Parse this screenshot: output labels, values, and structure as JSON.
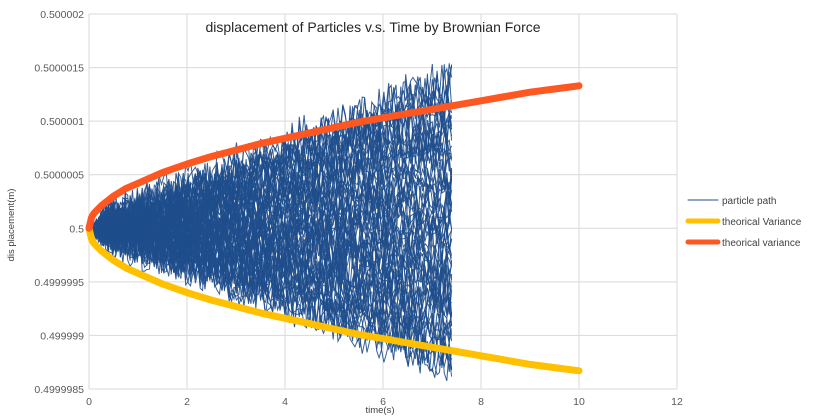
{
  "chart_data": {
    "type": "line",
    "title": "displacement of Particles v.s. Time by Brownian Force",
    "xlabel": "time(s)",
    "ylabel": "dis placement(m)",
    "xlim": [
      0,
      12
    ],
    "ylim": [
      0.4999985,
      0.500002
    ],
    "xticks": [
      "0",
      "2",
      "4",
      "6",
      "8",
      "10",
      "12"
    ],
    "yticks": [
      "0.5000020",
      "0.5000015",
      "0.5000010",
      "0.5000005",
      "0.5",
      "0.4999995",
      "0.4999990",
      "0.4999985"
    ],
    "ytick_labels": [
      "0.500002",
      "0.5000015",
      "0.500001",
      "0.5000005",
      "0.5",
      "0.4999995",
      "0.499999",
      "0.4999985"
    ],
    "grid": true,
    "legend_position": "right",
    "series": [
      {
        "name": "particle path",
        "color": "#1f4e8c",
        "t_end": 7.4,
        "count": 70,
        "y_start": 0.5,
        "y_end_range": [
          0.49999866,
          0.50000145
        ]
      },
      {
        "name": "theorical Variance",
        "color": "#ffc000",
        "x": [
          0,
          0.05,
          0.1,
          0.25,
          0.5,
          0.75,
          1,
          1.5,
          2,
          2.5,
          3,
          3.5,
          4,
          4.5,
          5,
          5.5,
          6,
          6.5,
          7,
          7.5,
          8,
          8.5,
          9,
          9.5,
          10
        ],
        "y": [
          0.5,
          0.4999999,
          0.49999986,
          0.49999979,
          0.4999997,
          0.49999963,
          0.49999958,
          0.49999948,
          0.4999994,
          0.49999933,
          0.49999927,
          0.49999921,
          0.49999916,
          0.49999911,
          0.49999906,
          0.49999901,
          0.49999897,
          0.49999893,
          0.49999889,
          0.49999885,
          0.49999881,
          0.49999877,
          0.49999873,
          0.4999987,
          0.49999867
        ]
      },
      {
        "name": "theorical variance",
        "color": "#ff5722",
        "x": [
          0,
          0.05,
          0.1,
          0.25,
          0.5,
          0.75,
          1,
          1.5,
          2,
          2.5,
          3,
          3.5,
          4,
          4.5,
          5,
          5.5,
          6,
          6.5,
          7,
          7.5,
          8,
          8.5,
          9,
          9.5,
          10
        ],
        "y": [
          0.5,
          0.5000001,
          0.50000014,
          0.50000021,
          0.5000003,
          0.50000037,
          0.50000042,
          0.50000052,
          0.5000006,
          0.50000067,
          0.50000073,
          0.50000079,
          0.50000084,
          0.50000089,
          0.50000094,
          0.50000099,
          0.50000103,
          0.50000107,
          0.50000111,
          0.50000115,
          0.50000119,
          0.50000123,
          0.50000127,
          0.5000013,
          0.50000133
        ]
      }
    ]
  }
}
